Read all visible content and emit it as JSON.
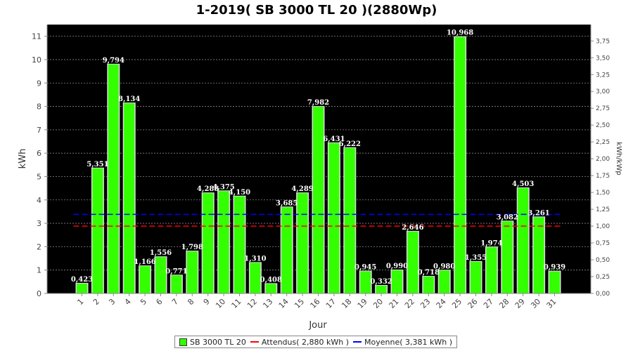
{
  "chart_data": {
    "type": "bar",
    "title": "1-2019( SB 3000 TL 20 )(2880Wp)",
    "xlabel": "Jour",
    "ylabel": "kWh",
    "ylabel_right": "kWh/kWp",
    "categories": [
      "1",
      "2",
      "3",
      "4",
      "5",
      "6",
      "7",
      "8",
      "9",
      "10",
      "11",
      "12",
      "13",
      "14",
      "15",
      "16",
      "17",
      "18",
      "19",
      "20",
      "21",
      "22",
      "23",
      "24",
      "25",
      "26",
      "27",
      "28",
      "29",
      "30",
      "31"
    ],
    "series": [
      {
        "name": "SB 3000 TL 20",
        "color": "#33ff00",
        "values": [
          0.423,
          5.351,
          9.794,
          8.134,
          1.166,
          1.556,
          0.771,
          1.798,
          4.288,
          4.375,
          4.15,
          1.31,
          0.408,
          3.685,
          4.289,
          7.982,
          6.431,
          6.222,
          0.945,
          0.332,
          0.99,
          2.646,
          0.718,
          0.98,
          10.968,
          1.355,
          1.974,
          3.082,
          4.503,
          3.261,
          0.939
        ],
        "labels": [
          "0,423",
          "5,351",
          "9,794",
          "8,134",
          "1,166",
          "1,556",
          "0,771",
          "1,798",
          "4,288",
          "4,375",
          "4,150",
          "1,310",
          "0,408",
          "3,685",
          "4,289",
          "7,982",
          "6,431",
          "6,222",
          "0,945",
          "0,332",
          "0,990",
          "2,646",
          "0,718",
          "0,980",
          "10,968",
          "1,355",
          "1,974",
          "3,082",
          "4,503",
          "3,261",
          "0,939"
        ]
      }
    ],
    "reference_lines": [
      {
        "name": "Attendus( 2,880 kWh )",
        "value": 2.88,
        "color": "#ff0000"
      },
      {
        "name": "Moyenne( 3,381 kWh )",
        "value": 3.381,
        "color": "#0000ff"
      }
    ],
    "ylim": [
      0,
      11.5
    ],
    "yticks": [
      "0",
      "1",
      "2",
      "3",
      "4",
      "5",
      "6",
      "7",
      "8",
      "9",
      "10",
      "11"
    ],
    "y2lim": [
      0,
      3.993
    ],
    "y2ticks": [
      "0,00",
      "0,25",
      "0,50",
      "0,75",
      "1,00",
      "1,25",
      "1,50",
      "1,75",
      "2,00",
      "2,25",
      "2,50",
      "2,75",
      "3,00",
      "3,25",
      "3,50",
      "3,75"
    ],
    "grid": true,
    "legend_position": "bottom",
    "colors": {
      "plot_background": "#000000",
      "grid": "#888888",
      "bar": "#33ff00"
    }
  }
}
